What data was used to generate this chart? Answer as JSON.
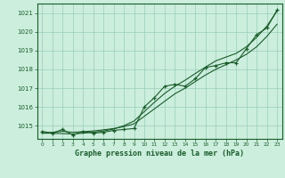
{
  "title": "Graphe pression niveau de la mer (hPa)",
  "background_color": "#cceedd",
  "grid_color": "#99ccbb",
  "line_color": "#1a5c2a",
  "xlim": [
    -0.5,
    23.5
  ],
  "ylim": [
    1014.3,
    1021.5
  ],
  "yticks": [
    1015,
    1016,
    1017,
    1018,
    1019,
    1020,
    1021
  ],
  "xticks": [
    0,
    1,
    2,
    3,
    4,
    5,
    6,
    7,
    8,
    9,
    10,
    11,
    12,
    13,
    14,
    15,
    16,
    17,
    18,
    19,
    20,
    21,
    22,
    23
  ],
  "x": [
    0,
    1,
    2,
    3,
    4,
    5,
    6,
    7,
    8,
    9,
    10,
    11,
    12,
    13,
    14,
    15,
    16,
    17,
    18,
    19,
    20,
    21,
    22,
    23
  ],
  "y_main": [
    1014.7,
    1014.6,
    1014.8,
    1014.5,
    1014.7,
    1014.6,
    1014.65,
    1014.75,
    1014.8,
    1014.85,
    1016.0,
    1016.5,
    1017.1,
    1017.2,
    1017.1,
    1017.5,
    1018.1,
    1018.2,
    1018.35,
    1018.35,
    1019.1,
    1019.85,
    1020.2,
    1021.15
  ],
  "y_linear1": [
    1014.6,
    1014.65,
    1014.7,
    1014.65,
    1014.68,
    1014.72,
    1014.78,
    1014.85,
    1014.95,
    1015.1,
    1015.5,
    1015.9,
    1016.3,
    1016.7,
    1017.0,
    1017.35,
    1017.7,
    1018.0,
    1018.25,
    1018.5,
    1018.8,
    1019.2,
    1019.75,
    1020.4
  ],
  "y_linear2": [
    1014.6,
    1014.6,
    1014.58,
    1014.56,
    1014.6,
    1014.65,
    1014.72,
    1014.82,
    1015.0,
    1015.25,
    1015.75,
    1016.25,
    1016.72,
    1017.1,
    1017.42,
    1017.78,
    1018.12,
    1018.45,
    1018.65,
    1018.85,
    1019.2,
    1019.7,
    1020.3,
    1021.1
  ]
}
